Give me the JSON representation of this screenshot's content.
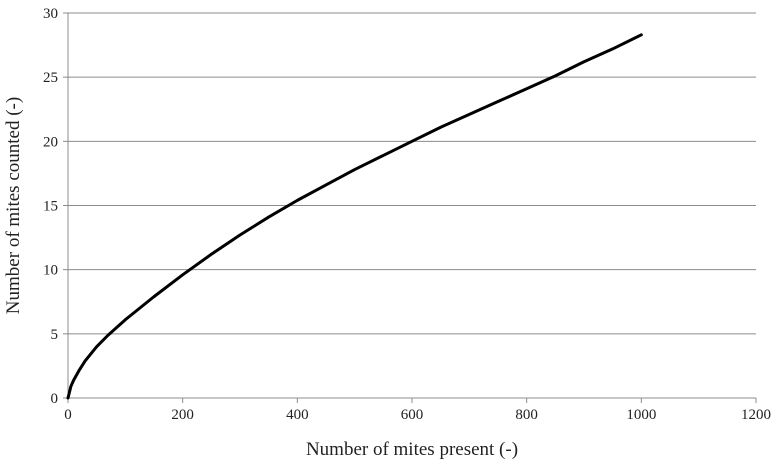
{
  "chart_data": {
    "type": "line",
    "title": "",
    "xlabel": "Number of mites present (-)",
    "ylabel": "Number of mites counted (-)",
    "xlim": [
      0,
      1200
    ],
    "ylim": [
      0,
      30
    ],
    "x_ticks": [
      "0",
      "200",
      "400",
      "600",
      "800",
      "1000",
      "1200"
    ],
    "y_ticks": [
      "0",
      "5",
      "10",
      "15",
      "20",
      "25",
      "30"
    ],
    "grid": "horizontal",
    "legend": "none",
    "colors": {
      "line": "#000000",
      "grid": "#8c8c8c",
      "axis": "#8c8c8c"
    },
    "series": [
      {
        "x": [
          0,
          5,
          10,
          20,
          30,
          50,
          70,
          90,
          100,
          150,
          200,
          250,
          300,
          350,
          400,
          450,
          500,
          550,
          600,
          650,
          700,
          750,
          800,
          850,
          900,
          950,
          1000
        ],
        "y": [
          0,
          0.9,
          1.4,
          2.2,
          2.9,
          4.0,
          4.9,
          5.7,
          6.1,
          7.9,
          9.6,
          11.2,
          12.7,
          14.1,
          15.4,
          16.6,
          17.8,
          18.9,
          20.0,
          21.1,
          22.1,
          23.1,
          24.1,
          25.1,
          26.2,
          27.2,
          28.3
        ]
      }
    ]
  }
}
